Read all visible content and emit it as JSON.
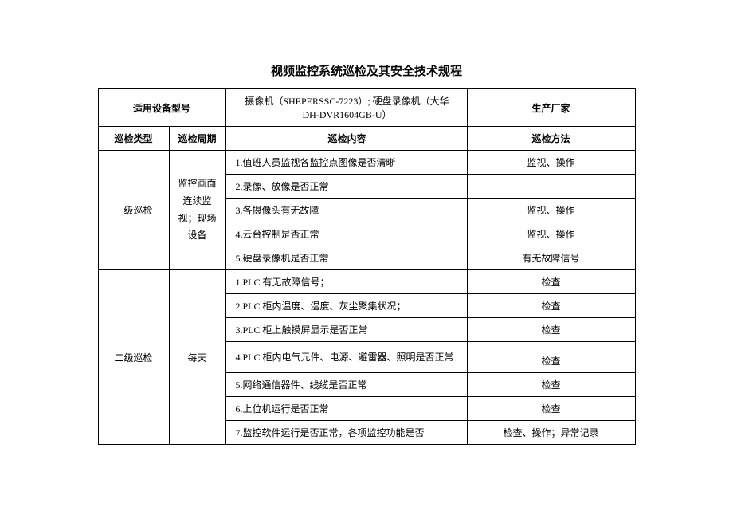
{
  "title": "视频监控系统巡检及其安全技术规程",
  "headerRow1": {
    "col1": "适用设备型号",
    "col2": "摄像机（SHEPERSSC-7223）; 硬盘录像机（大华 DH-DVR1604GB-U）",
    "col3": "生产厂家"
  },
  "headerRow2": {
    "col1": "巡检类型",
    "col2": "巡检周期",
    "col3": "巡检内容",
    "col4": "巡检方法"
  },
  "categories": [
    {
      "type": "一级巡检",
      "cycle": "监控画面连续监视；现场设备",
      "rows": [
        {
          "content": "1.值班人员监视各监控点图像是否清晰",
          "method": "监视、操作"
        },
        {
          "content": "2.录像、放像是否正常",
          "method": ""
        },
        {
          "content": "3.各摄像头有无故障",
          "method": "监视、操作"
        },
        {
          "content": "4.云台控制是否正常",
          "method": "监视、操作"
        },
        {
          "content": "5.硬盘录像机是否正常",
          "method": "有无故障信号"
        }
      ]
    },
    {
      "type": "二级巡检",
      "cycle": "每天",
      "rows": [
        {
          "content": "1.PLC 有无故障信号；",
          "method": "检查"
        },
        {
          "content": "2.PLC 柜内温度、湿度、灰尘聚集状况；",
          "method": "检查"
        },
        {
          "content": "3.PLC 柜上触摸屏显示是否正常",
          "method": "检查"
        },
        {
          "content": "4.PLC 柜内电气元件、电源、避雷器、照明是否正常",
          "method": "检查"
        },
        {
          "content": "5.网络通信器件、线缆是否正常",
          "method": "检查"
        },
        {
          "content": "6.上位机运行是否正常",
          "method": "检查"
        },
        {
          "content": "7.监控软件运行是否正常，各项监控功能是否",
          "method": "检查、操作；异常记录"
        }
      ]
    }
  ],
  "colors": {
    "text": "#000000",
    "background": "#ffffff",
    "border": "#000000"
  }
}
